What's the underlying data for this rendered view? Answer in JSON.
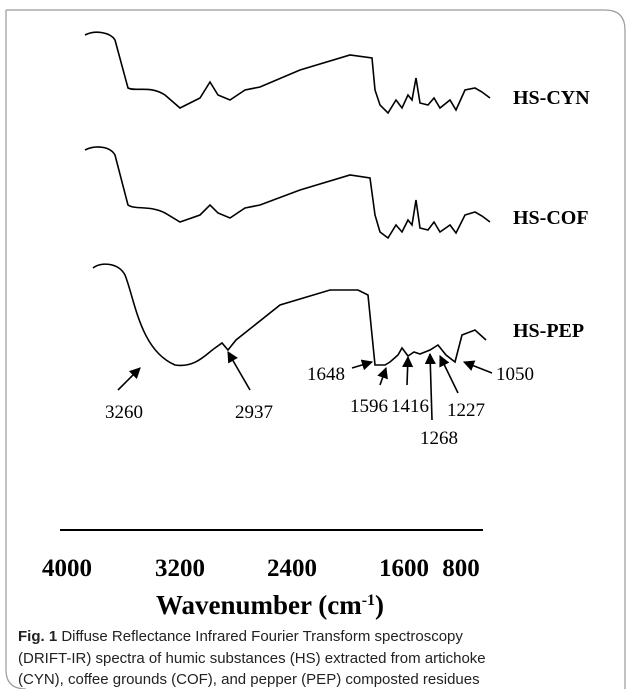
{
  "figure": {
    "series_labels": [
      "HS-CYN",
      "HS-COF",
      "HS-PEP"
    ],
    "annotations": [
      "3260",
      "2937",
      "1648",
      "1596",
      "1416",
      "1268",
      "1227",
      "1050"
    ],
    "axis": {
      "ticks": [
        "4000",
        "3200",
        "2400",
        "1600",
        "800"
      ],
      "label": "Wavenumber (cm",
      "label_sup": "-1",
      "label_end": ")"
    }
  },
  "caption": {
    "label": "Fig. 1",
    "lines": [
      " Diffuse Reflectance Infrared Fourier Transform spectroscopy",
      "(DRIFT-IR) spectra of humic substances (HS) extracted from artichoke",
      "(CYN), coffee grounds (COF), and pepper (PEP) composted residues"
    ]
  }
}
